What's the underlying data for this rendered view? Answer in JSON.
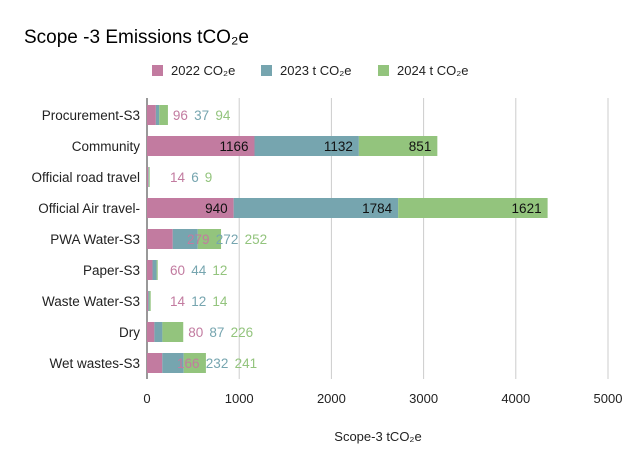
{
  "chart_data": {
    "type": "bar",
    "orientation": "horizontal",
    "stacked": true,
    "title": "Scope -3 Emissions tCO₂e",
    "xlabel": "Scope-3 tCO₂e",
    "ylabel": "",
    "xlim": [
      0,
      5000
    ],
    "xticks": [
      0,
      1000,
      2000,
      3000,
      4000,
      5000
    ],
    "grid": true,
    "legend_position": "top",
    "categories": [
      "Procurement-S3",
      "Community",
      "Official road travel",
      "Official Air travel-",
      "PWA Water-S3",
      "Paper-S3",
      "Waste Water-S3",
      "Dry",
      "Wet wastes-S3"
    ],
    "series": [
      {
        "name": "2022 CO₂e",
        "color": "#c27ba0",
        "values": [
          96,
          1166,
          14,
          940,
          279,
          60,
          14,
          80,
          166
        ]
      },
      {
        "name": "2023 t CO₂e",
        "color": "#76a5af",
        "values": [
          37,
          1132,
          6,
          1784,
          272,
          44,
          12,
          87,
          232
        ]
      },
      {
        "name": "2024 t CO₂e",
        "color": "#93c47d",
        "values": [
          94,
          851,
          9,
          1621,
          252,
          12,
          14,
          226,
          241
        ]
      }
    ]
  }
}
